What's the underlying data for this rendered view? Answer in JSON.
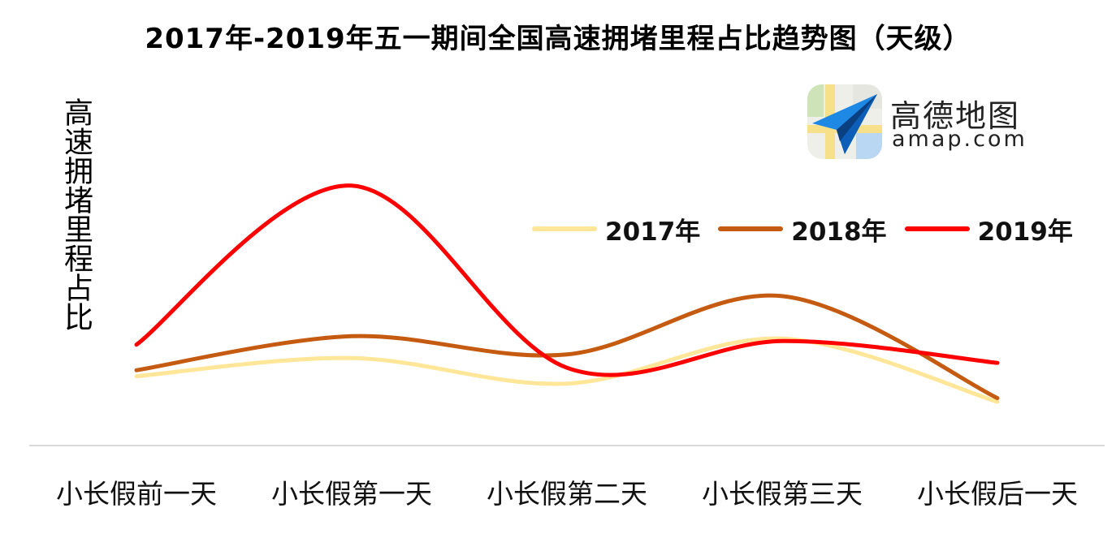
{
  "title": "2017年-2019年五一期间全国高速拥堵里程占比趋势图（天级）",
  "logo": {
    "name_cn": "高德地图",
    "name_en": "amap.com"
  },
  "chart_data": {
    "type": "line",
    "smooth": true,
    "title": "2017年-2019年五一期间全国高速拥堵里程占比趋势图（天级）",
    "xlabel": "",
    "ylabel": "高速拥堵里程占比",
    "y_axis_ticks_shown": false,
    "grid": false,
    "legend_position": "top-right",
    "ylim": [
      0,
      30
    ],
    "categories": [
      "小长假前一天",
      "小长假第一天",
      "小长假第二天",
      "小长假第三天",
      "小长假后一天"
    ],
    "series": [
      {
        "name": "2017年",
        "color": "#FFE699",
        "values": [
          5.7,
          7.2,
          5.1,
          8.8,
          3.6
        ]
      },
      {
        "name": "2018年",
        "color": "#C55A11",
        "values": [
          6.2,
          9.0,
          7.5,
          12.3,
          3.9
        ]
      },
      {
        "name": "2019年",
        "color": "#FF0000",
        "values": [
          8.3,
          21.4,
          6.4,
          8.6,
          6.8
        ]
      }
    ]
  }
}
